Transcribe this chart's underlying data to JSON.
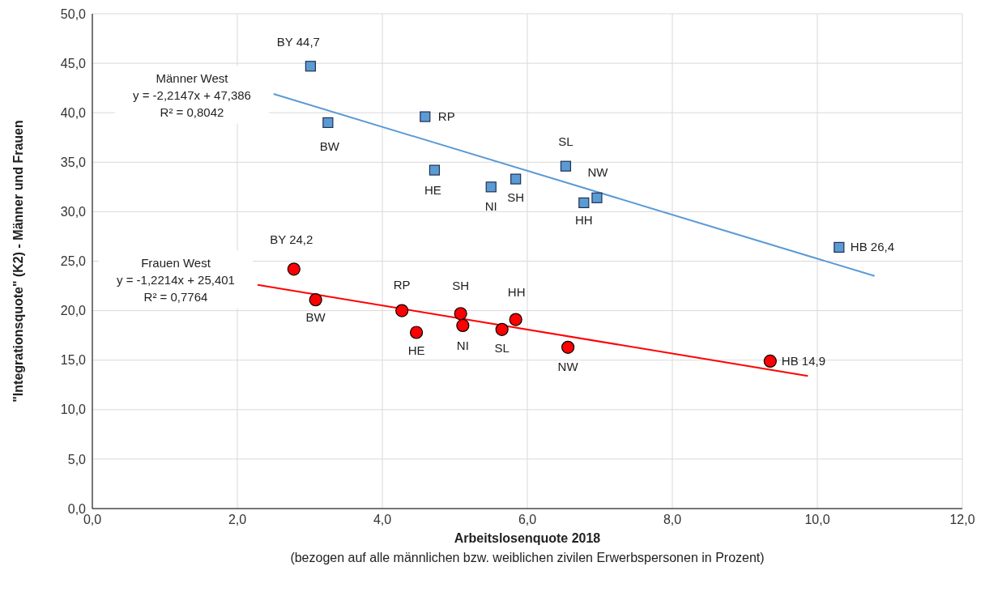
{
  "chart_data": {
    "type": "scatter",
    "xlabel": "Arbeitslosenquote 2018",
    "ylabel": "\"Integrationsquote\" (K2) - Männer und Frauen",
    "xlim": [
      0,
      12
    ],
    "xticks": [
      {
        "value": 0,
        "label": "0,0"
      },
      {
        "value": 2,
        "label": "2,0"
      },
      {
        "value": 4,
        "label": "4,0"
      },
      {
        "value": 6,
        "label": "6,0"
      },
      {
        "value": 8,
        "label": "8,0"
      },
      {
        "value": 10,
        "label": "10,0"
      },
      {
        "value": 12,
        "label": "12,0"
      }
    ],
    "ylim": [
      0,
      50
    ],
    "yticks": [
      {
        "value": 0,
        "label": "0,0"
      },
      {
        "value": 5,
        "label": "5,0"
      },
      {
        "value": 10,
        "label": "10,0"
      },
      {
        "value": 15,
        "label": "15,0"
      },
      {
        "value": 20,
        "label": "20,0"
      },
      {
        "value": 25,
        "label": "25,0"
      },
      {
        "value": 30,
        "label": "30,0"
      },
      {
        "value": 35,
        "label": "35,0"
      },
      {
        "value": 40,
        "label": "40,0"
      },
      {
        "value": 45,
        "label": "45,0"
      },
      {
        "value": 50,
        "label": "50,0"
      }
    ],
    "grid": true,
    "series": [
      {
        "type": "scatter",
        "marker": "square",
        "color": "#5b9bd5",
        "x": [
          3.01,
          3.25,
          4.59,
          4.72,
          5.5,
          5.84,
          6.53,
          6.78,
          6.96,
          10.3
        ],
        "values": [
          44.7,
          39.0,
          39.6,
          34.2,
          32.5,
          33.3,
          34.6,
          30.9,
          31.4,
          26.4
        ]
      },
      {
        "type": "scatter",
        "marker": "circle",
        "color": "#ff0000",
        "x": [
          2.78,
          3.08,
          4.27,
          4.47,
          5.08,
          5.11,
          5.65,
          5.84,
          6.56,
          9.35
        ],
        "values": [
          24.2,
          21.1,
          20.0,
          17.8,
          19.7,
          18.5,
          18.1,
          19.1,
          16.3,
          14.9
        ]
      },
      {
        "type": "line",
        "color": "#5b9bd5",
        "x": [
          2.5,
          10.79
        ],
        "values": [
          41.9,
          23.5
        ]
      },
      {
        "type": "line",
        "color": "#ff0000",
        "x": [
          2.28,
          9.87
        ],
        "values": [
          22.6,
          13.4
        ]
      }
    ],
    "annotations": [
      {
        "text": "BY 44,7",
        "x": 3.01,
        "y": 44.7
      },
      {
        "text": "BW",
        "x": 3.25,
        "y": 39.0
      },
      {
        "text": "RP",
        "x": 4.59,
        "y": 39.6
      },
      {
        "text": "HE",
        "x": 4.72,
        "y": 34.2
      },
      {
        "text": "NI",
        "x": 5.5,
        "y": 32.5
      },
      {
        "text": "SH",
        "x": 5.84,
        "y": 33.3
      },
      {
        "text": "SL",
        "x": 6.53,
        "y": 34.6
      },
      {
        "text": "HH",
        "x": 6.78,
        "y": 30.9
      },
      {
        "text": "NW",
        "x": 6.96,
        "y": 31.4
      },
      {
        "text": "HB 26,4",
        "x": 10.3,
        "y": 26.4
      },
      {
        "text": "BY 24,2",
        "x": 2.78,
        "y": 24.2
      },
      {
        "text": "BW",
        "x": 3.08,
        "y": 21.1
      },
      {
        "text": "RP",
        "x": 4.27,
        "y": 20.0
      },
      {
        "text": "HE",
        "x": 4.47,
        "y": 17.8
      },
      {
        "text": "SH",
        "x": 5.08,
        "y": 19.7
      },
      {
        "text": "NI",
        "x": 5.11,
        "y": 18.5
      },
      {
        "text": "SL",
        "x": 5.65,
        "y": 18.1
      },
      {
        "text": "HH",
        "x": 5.84,
        "y": 19.1
      },
      {
        "text": "NW",
        "x": 6.56,
        "y": 16.3
      },
      {
        "text": "HB 14,9",
        "x": 9.35,
        "y": 14.9
      },
      "Männer West\ny = -2,2147x + 47,386\nR² = 0,8042",
      "Frauen West\ny = -1,2214x + 25,401\nR² = 0,7764",
      "(bezogen auf alle männlichen bzw. weiblichen zivilen Erwerbspersonen in Prozent)"
    ]
  }
}
